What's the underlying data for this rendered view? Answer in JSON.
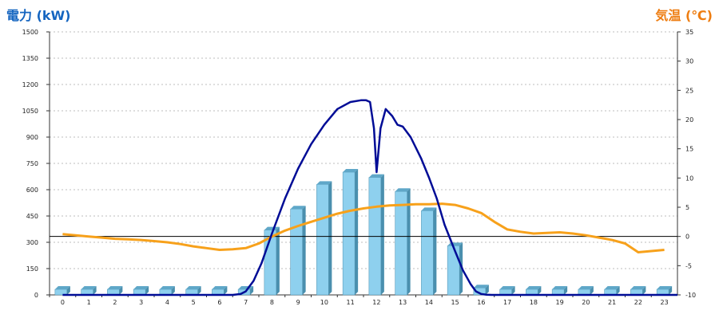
{
  "colors": {
    "left_title": "#1565c0",
    "right_title": "#ee7d11",
    "bar_front": "#8ed0ee",
    "bar_top": "#5fa7c8",
    "bar_side": "#4a8fae",
    "power_line": "#000c96",
    "temp_line": "#f7a11b",
    "grid": "#bdbdbd",
    "zero_line": "#000000"
  },
  "chart_data": {
    "type": "bar",
    "title": "",
    "ylabel": "電力 (kW)",
    "y2label": "気温 (℃)",
    "categories": [
      "0",
      "1",
      "2",
      "3",
      "4",
      "5",
      "6",
      "7",
      "8",
      "9",
      "10",
      "11",
      "12",
      "13",
      "14",
      "15",
      "16",
      "17",
      "18",
      "19",
      "20",
      "21",
      "22",
      "23"
    ],
    "ylim": [
      0,
      1500
    ],
    "yticks": [
      0,
      150,
      300,
      450,
      600,
      750,
      900,
      1050,
      1200,
      1350,
      1500
    ],
    "y2lim": [
      -10,
      35
    ],
    "y2ticks": [
      -10,
      -5,
      0,
      5,
      10,
      15,
      20,
      25,
      30,
      35
    ],
    "grid": true,
    "bars": {
      "values": [
        0,
        0,
        0,
        0,
        0,
        0,
        0,
        30,
        370,
        490,
        630,
        700,
        670,
        590,
        480,
        280,
        40,
        0,
        0,
        0,
        0,
        0,
        0,
        0
      ]
    },
    "power_curve": {
      "x": [
        0,
        6.5,
        6.8,
        7.0,
        7.3,
        7.6,
        8.0,
        8.5,
        9.0,
        9.5,
        10.0,
        10.5,
        11.0,
        11.4,
        11.6,
        11.75,
        11.9,
        12.0,
        12.15,
        12.35,
        12.6,
        12.8,
        13.0,
        13.3,
        13.7,
        14.0,
        14.3,
        14.6,
        15.0,
        15.3,
        15.6,
        15.8,
        16.0,
        16.2,
        16.4,
        23.5
      ],
      "y": [
        0,
        0,
        5,
        20,
        80,
        180,
        350,
        550,
        720,
        860,
        970,
        1060,
        1100,
        1110,
        1110,
        1100,
        950,
        700,
        950,
        1060,
        1020,
        970,
        960,
        900,
        780,
        670,
        550,
        400,
        250,
        140,
        60,
        20,
        5,
        1,
        0,
        0
      ]
    },
    "temp_curve": {
      "x": [
        0,
        0.5,
        1,
        1.5,
        2,
        2.5,
        3,
        3.5,
        4,
        4.5,
        5,
        5.5,
        6,
        6.5,
        7,
        7.5,
        8,
        8.5,
        9,
        9.5,
        10,
        10.5,
        11,
        11.5,
        12,
        12.5,
        13,
        13.5,
        14,
        14.5,
        15,
        15.5,
        16,
        16.5,
        17,
        17.5,
        18,
        18.5,
        19,
        19.5,
        20,
        20.5,
        21,
        21.5,
        22,
        22.5,
        23
      ],
      "y": [
        0.4,
        0.2,
        0,
        -0.2,
        -0.4,
        -0.5,
        -0.6,
        -0.8,
        -1.0,
        -1.3,
        -1.7,
        -2.0,
        -2.3,
        -2.2,
        -2.0,
        -1.2,
        0,
        1.0,
        1.8,
        2.5,
        3.2,
        3.9,
        4.4,
        4.8,
        5.1,
        5.3,
        5.4,
        5.5,
        5.5,
        5.6,
        5.4,
        4.8,
        4.0,
        2.5,
        1.2,
        0.8,
        0.5,
        0.6,
        0.7,
        0.5,
        0.2,
        -0.2,
        -0.6,
        -1.2,
        -2.7,
        -2.5,
        -2.3
      ]
    }
  }
}
